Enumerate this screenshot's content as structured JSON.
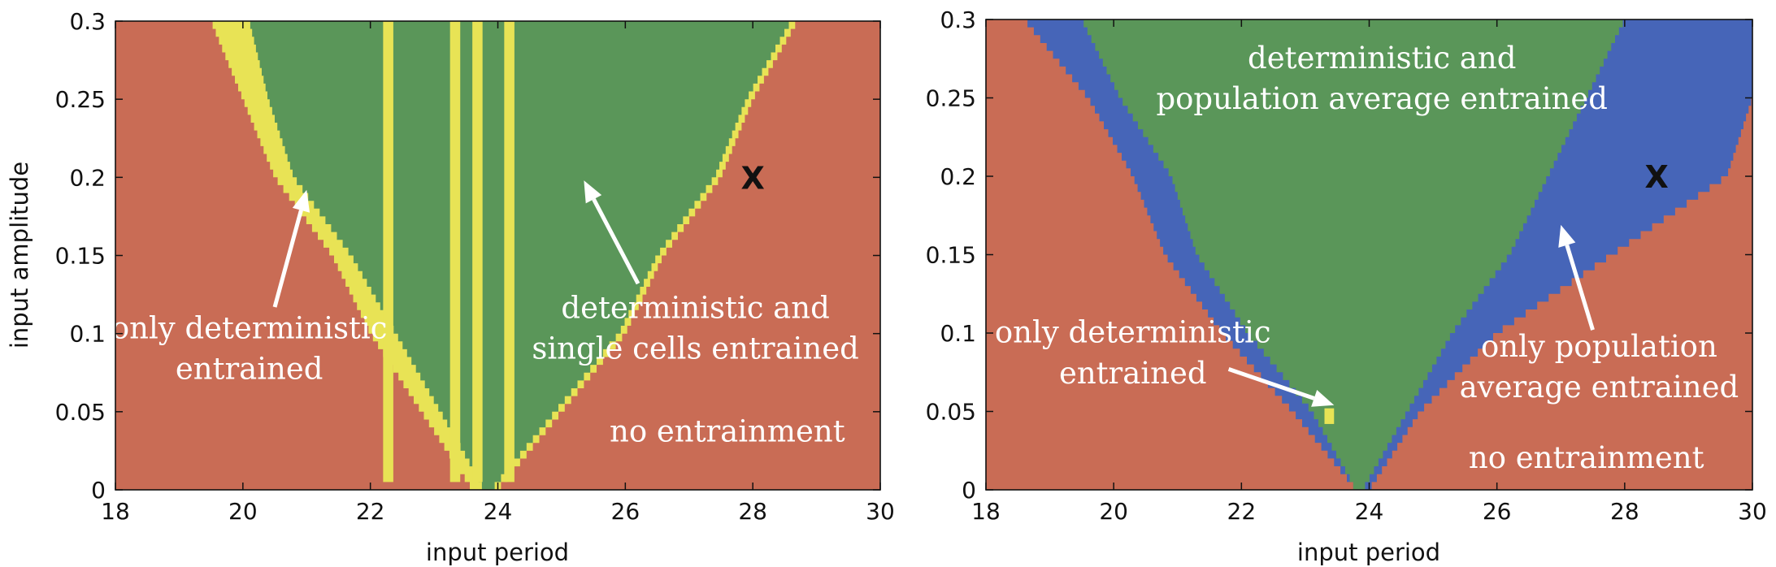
{
  "colors": {
    "no_entrainment": "#c96c55",
    "deterministic_and_both": "#5a9659",
    "only_deterministic": "#e8e355",
    "only_population": "#4665b8",
    "axis": "#111111",
    "annotation": "#ffffff"
  },
  "chart_data": [
    {
      "type": "heatmap",
      "id": "left",
      "xlabel": "input period",
      "ylabel": "input amplitude",
      "xlim": [
        18,
        30
      ],
      "ylim": [
        0,
        0.3
      ],
      "xticks": [
        "18",
        "20",
        "22",
        "24",
        "26",
        "28",
        "30"
      ],
      "yticks": [
        "0",
        "0.05",
        "0.1",
        "0.15",
        "0.2",
        "0.25",
        "0.3"
      ],
      "regions": {
        "green_left_edge": [
          [
            23.8,
            0.0
          ],
          [
            22.4,
            0.1
          ],
          [
            21.7,
            0.15
          ],
          [
            20.8,
            0.2
          ],
          [
            20.4,
            0.25
          ],
          [
            20.1,
            0.3
          ]
        ],
        "yellow_left_edge": [
          [
            23.6,
            0.0
          ],
          [
            22.0,
            0.1
          ],
          [
            21.4,
            0.15
          ],
          [
            20.5,
            0.2
          ],
          [
            20.0,
            0.25
          ],
          [
            19.5,
            0.3
          ]
        ],
        "green_right_edge": [
          [
            23.9,
            0.0
          ],
          [
            24.9,
            0.05
          ],
          [
            25.9,
            0.1
          ],
          [
            26.5,
            0.15
          ],
          [
            27.4,
            0.2
          ],
          [
            27.9,
            0.25
          ],
          [
            28.6,
            0.3
          ]
        ],
        "yellow_right_edge": [
          [
            24.0,
            0.0
          ],
          [
            25.0,
            0.05
          ],
          [
            26.0,
            0.1
          ],
          [
            26.6,
            0.15
          ],
          [
            27.5,
            0.2
          ],
          [
            28.0,
            0.25
          ],
          [
            28.7,
            0.3
          ]
        ],
        "yellow_stripes": [
          22.2,
          23.25,
          23.6,
          24.1
        ]
      },
      "annotations": [
        {
          "text": "only deterministic",
          "x": 20.1,
          "y": 0.097,
          "anchor": "middle"
        },
        {
          "text": "entrained",
          "x": 20.1,
          "y": 0.071,
          "anchor": "middle"
        },
        {
          "text": "deterministic and",
          "x": 27.1,
          "y": 0.11,
          "anchor": "middle"
        },
        {
          "text": "single cells entrained",
          "x": 27.1,
          "y": 0.084,
          "anchor": "middle"
        },
        {
          "text": "no entrainment",
          "x": 27.6,
          "y": 0.031,
          "anchor": "middle"
        }
      ],
      "arrows": [
        {
          "from": [
            20.5,
            0.117
          ],
          "to": [
            21.0,
            0.192
          ]
        },
        {
          "from": [
            26.2,
            0.132
          ],
          "to": [
            25.35,
            0.198
          ]
        }
      ],
      "marker": {
        "text": "X",
        "x": 28.0,
        "y": 0.2
      }
    },
    {
      "type": "heatmap",
      "id": "right",
      "xlabel": "input period",
      "ylabel": "",
      "xlim": [
        18,
        30
      ],
      "ylim": [
        0,
        0.3
      ],
      "xticks": [
        "18",
        "20",
        "22",
        "24",
        "26",
        "28",
        "30"
      ],
      "yticks": [
        "0",
        "0.05",
        "0.1",
        "0.15",
        "0.2",
        "0.25",
        "0.3"
      ],
      "regions": {
        "green_left_edge": [
          [
            23.8,
            0.0
          ],
          [
            23.1,
            0.05
          ],
          [
            22.1,
            0.1
          ],
          [
            21.3,
            0.15
          ],
          [
            20.9,
            0.2
          ],
          [
            20.1,
            0.25
          ],
          [
            19.5,
            0.3
          ]
        ],
        "blue_left_edge": [
          [
            23.8,
            0.0
          ],
          [
            22.8,
            0.05
          ],
          [
            21.7,
            0.1
          ],
          [
            20.8,
            0.15
          ],
          [
            20.3,
            0.2
          ],
          [
            19.6,
            0.25
          ],
          [
            18.6,
            0.3
          ]
        ],
        "green_right_edge": [
          [
            23.9,
            0.0
          ],
          [
            24.6,
            0.05
          ],
          [
            25.3,
            0.1
          ],
          [
            26.2,
            0.15
          ],
          [
            26.8,
            0.2
          ],
          [
            27.4,
            0.25
          ],
          [
            28.0,
            0.3
          ]
        ],
        "blue_right_edge": [
          [
            24.0,
            0.0
          ],
          [
            24.8,
            0.05
          ],
          [
            26.0,
            0.1
          ],
          [
            27.8,
            0.15
          ],
          [
            29.6,
            0.2
          ],
          [
            30.0,
            0.25
          ],
          [
            30.0,
            0.3
          ]
        ],
        "yellow_cell": [
          23.3,
          0.042
        ]
      },
      "annotations": [
        {
          "text": "deterministic and",
          "x": 24.2,
          "y": 0.269,
          "anchor": "middle"
        },
        {
          "text": "population average entrained",
          "x": 24.2,
          "y": 0.243,
          "anchor": "middle"
        },
        {
          "text": "only deterministic",
          "x": 20.3,
          "y": 0.094,
          "anchor": "middle"
        },
        {
          "text": "entrained",
          "x": 20.3,
          "y": 0.068,
          "anchor": "middle"
        },
        {
          "text": "only population",
          "x": 27.6,
          "y": 0.085,
          "anchor": "middle"
        },
        {
          "text": "average entrained",
          "x": 27.6,
          "y": 0.059,
          "anchor": "middle"
        },
        {
          "text": "no entrainment",
          "x": 27.4,
          "y": 0.014,
          "anchor": "middle"
        }
      ],
      "arrows": [
        {
          "from": [
            21.8,
            0.077
          ],
          "to": [
            23.45,
            0.054
          ]
        },
        {
          "from": [
            27.5,
            0.102
          ],
          "to": [
            27.0,
            0.169
          ]
        }
      ],
      "marker": {
        "text": "X",
        "x": 28.5,
        "y": 0.2
      }
    }
  ]
}
